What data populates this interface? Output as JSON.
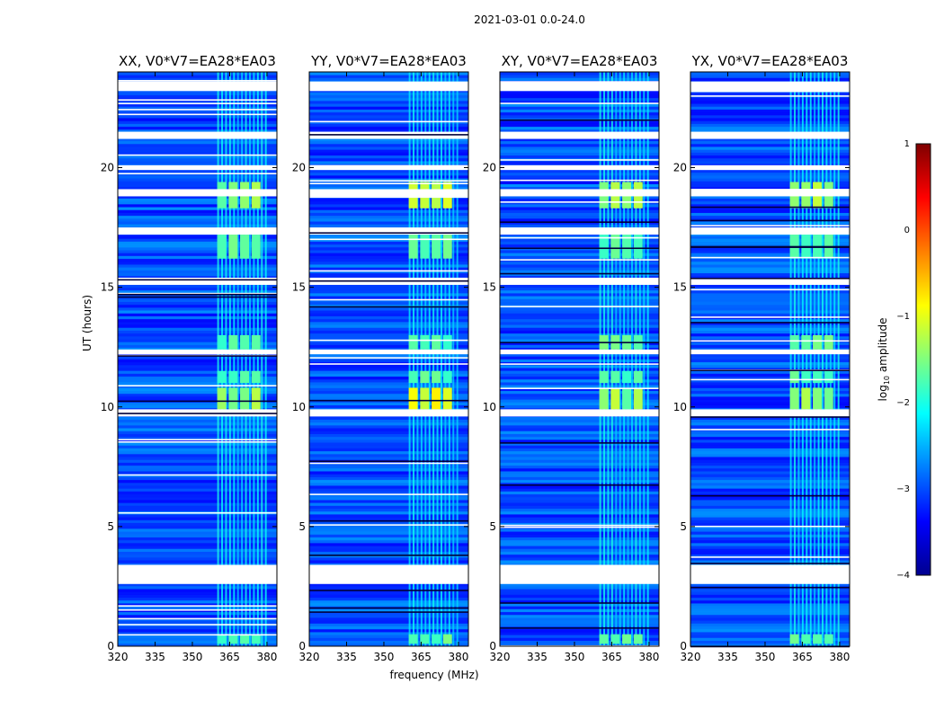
{
  "figure_title": "2021-03-01 0.0-24.0",
  "chart_data": [
    {
      "type": "heatmap",
      "title": "XX, V0*V7=EA28*EA03",
      "polarization": "XX",
      "xlabel": "frequency (MHz)",
      "ylabel": "UT (hours)",
      "xlim": [
        320,
        384
      ],
      "ylim": [
        0,
        24
      ],
      "xticks": [
        320,
        335,
        350,
        365,
        380
      ],
      "yticks": [
        0,
        5,
        10,
        15,
        20
      ],
      "rfi_band_mhz": [
        360,
        380
      ],
      "rfi_bursts_ut": [
        [
          18.3,
          19.4
        ],
        [
          16.2,
          17.2
        ],
        [
          12.4,
          13.0
        ],
        [
          11.0,
          11.5
        ],
        [
          9.9,
          10.8
        ],
        [
          0.1,
          0.5
        ]
      ],
      "flagged_ut": [
        [
          2.6,
          3.4
        ],
        [
          9.6,
          9.9
        ],
        [
          12.2,
          12.4
        ],
        [
          15.1,
          15.4
        ],
        [
          17.2,
          17.5
        ],
        [
          18.8,
          19.1
        ],
        [
          19.9,
          20.1
        ],
        [
          21.2,
          21.5
        ],
        [
          23.2,
          23.6
        ]
      ]
    },
    {
      "type": "heatmap",
      "title": "YY, V0*V7=EA28*EA03",
      "polarization": "YY",
      "xlabel": "frequency (MHz)",
      "ylabel": "UT (hours)",
      "xlim": [
        320,
        384
      ],
      "ylim": [
        0,
        24
      ],
      "xticks": [
        320,
        335,
        350,
        365,
        380
      ],
      "yticks": [
        0,
        5,
        10,
        15,
        20
      ],
      "rfi_band_mhz": [
        360,
        380
      ],
      "rfi_bursts_ut": [
        [
          18.3,
          19.4
        ],
        [
          16.2,
          17.2
        ],
        [
          12.4,
          13.0
        ],
        [
          11.0,
          11.5
        ],
        [
          9.9,
          10.8
        ],
        [
          0.1,
          0.5
        ]
      ],
      "flagged_ut": [
        [
          2.6,
          3.4
        ],
        [
          9.6,
          9.9
        ],
        [
          12.2,
          12.4
        ],
        [
          15.1,
          15.4
        ],
        [
          17.2,
          17.5
        ],
        [
          18.8,
          19.1
        ],
        [
          19.9,
          20.1
        ],
        [
          21.2,
          21.5
        ],
        [
          23.2,
          23.6
        ]
      ]
    },
    {
      "type": "heatmap",
      "title": "XY, V0*V7=EA28*EA03",
      "polarization": "XY",
      "xlabel": "frequency (MHz)",
      "ylabel": "UT (hours)",
      "xlim": [
        320,
        384
      ],
      "ylim": [
        0,
        24
      ],
      "xticks": [
        320,
        335,
        350,
        365,
        380
      ],
      "yticks": [
        0,
        5,
        10,
        15,
        20
      ],
      "rfi_band_mhz": [
        360,
        380
      ],
      "rfi_bursts_ut": [
        [
          18.3,
          19.4
        ],
        [
          16.2,
          17.2
        ],
        [
          12.4,
          13.0
        ],
        [
          11.0,
          11.5
        ],
        [
          9.9,
          10.8
        ],
        [
          0.1,
          0.5
        ]
      ],
      "flagged_ut": [
        [
          2.6,
          3.4
        ],
        [
          9.6,
          9.9
        ],
        [
          12.2,
          12.4
        ],
        [
          15.1,
          15.4
        ],
        [
          17.2,
          17.5
        ],
        [
          18.8,
          19.1
        ],
        [
          19.9,
          20.1
        ],
        [
          21.2,
          21.5
        ],
        [
          23.2,
          23.6
        ]
      ]
    },
    {
      "type": "heatmap",
      "title": "YX, V0*V7=EA28*EA03",
      "polarization": "YX",
      "xlabel": "frequency (MHz)",
      "ylabel": "UT (hours)",
      "xlim": [
        320,
        384
      ],
      "ylim": [
        0,
        24
      ],
      "xticks": [
        320,
        335,
        350,
        365,
        380
      ],
      "yticks": [
        0,
        5,
        10,
        15,
        20
      ],
      "rfi_band_mhz": [
        360,
        380
      ],
      "rfi_bursts_ut": [
        [
          18.3,
          19.4
        ],
        [
          16.2,
          17.2
        ],
        [
          12.4,
          13.0
        ],
        [
          11.0,
          11.5
        ],
        [
          9.9,
          10.8
        ],
        [
          0.1,
          0.5
        ]
      ],
      "flagged_ut": [
        [
          2.6,
          3.4
        ],
        [
          9.6,
          9.9
        ],
        [
          12.2,
          12.4
        ],
        [
          15.1,
          15.4
        ],
        [
          17.2,
          17.5
        ],
        [
          18.8,
          19.1
        ],
        [
          19.9,
          20.1
        ],
        [
          21.2,
          21.5
        ],
        [
          23.2,
          23.6
        ]
      ]
    }
  ],
  "colorbar": {
    "label_prefix": "log",
    "label_sub": "10",
    "label_suffix": " amplitude",
    "range": [
      -4,
      1
    ],
    "ticks": [
      "1",
      "0",
      "−1",
      "−2",
      "−3",
      "−4"
    ],
    "colormap": [
      "#00008f",
      "#0000ff",
      "#007fff",
      "#00ffff",
      "#7fff7f",
      "#ffff00",
      "#ff7f00",
      "#ff0000",
      "#7f0000"
    ]
  }
}
